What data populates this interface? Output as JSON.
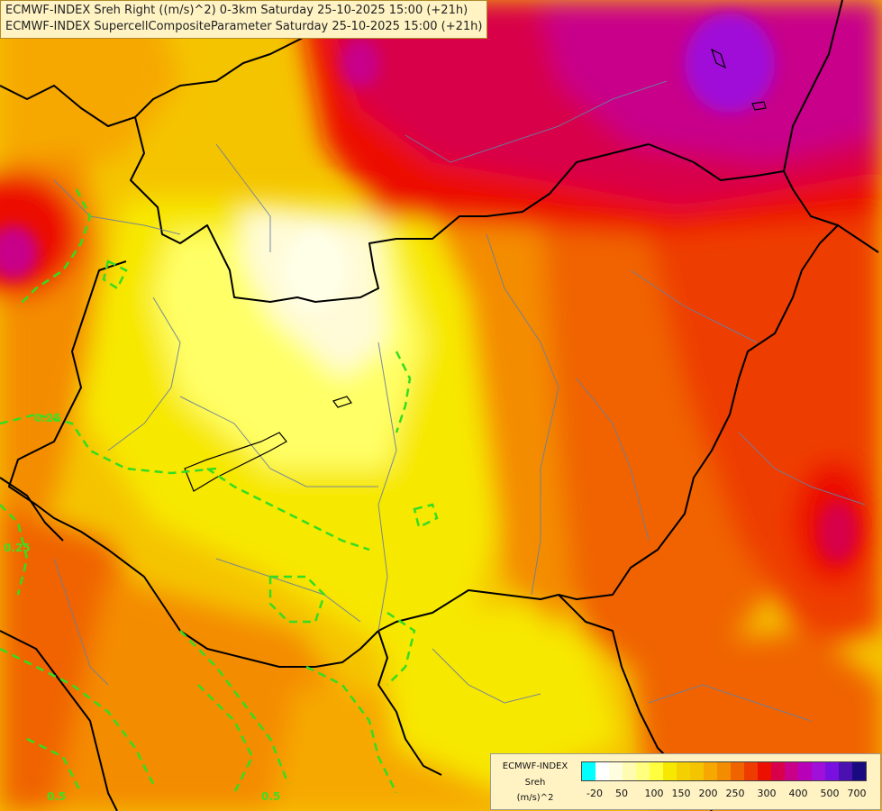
{
  "header": {
    "line1": "ECMWF-INDEX Sreh Right ((m/s)^2) 0-3km Saturday 25-10-2025 15:00 (+21h)",
    "line2": "ECMWF-INDEX SupercellCompositeParameter Saturday 25-10-2025 15:00 (+21h)"
  },
  "colors": {
    "pale": "#fffbd8",
    "lightyellow": "#ffff66",
    "yellow": "#f7e800",
    "goldenyellow": "#f5c400",
    "lightorange": "#f6a800",
    "orange": "#f48c00",
    "darkorange": "#f06400",
    "redorange": "#ee3c00",
    "red": "#ec1000",
    "crimson": "#d8004a",
    "magenta": "#c8008a",
    "purple": "#a010d8",
    "contour_green": "#33dd22",
    "border_black": "#000000",
    "border_gray": "#6a7ea0"
  },
  "contour_labels": [
    "0.25",
    "0.25",
    "0.5",
    "0.5"
  ],
  "legend": {
    "title_line1": "ECMWF-INDEX",
    "title_line2": "Sreh",
    "unit": "(m/s)^2",
    "swatches": [
      "#00ffff",
      "#ffffff",
      "#fffde0",
      "#fffbb0",
      "#ffff80",
      "#ffff40",
      "#f7e800",
      "#f5d000",
      "#f5c400",
      "#f6a800",
      "#f48c00",
      "#f06400",
      "#ee3c00",
      "#ec1000",
      "#d8004a",
      "#c8008a",
      "#b800b8",
      "#a010d8",
      "#7a10e0",
      "#4a10b0",
      "#1a0a80"
    ],
    "ticks": [
      "-20",
      "50",
      "100",
      "150",
      "200",
      "250",
      "300",
      "400",
      "500",
      "700"
    ]
  }
}
